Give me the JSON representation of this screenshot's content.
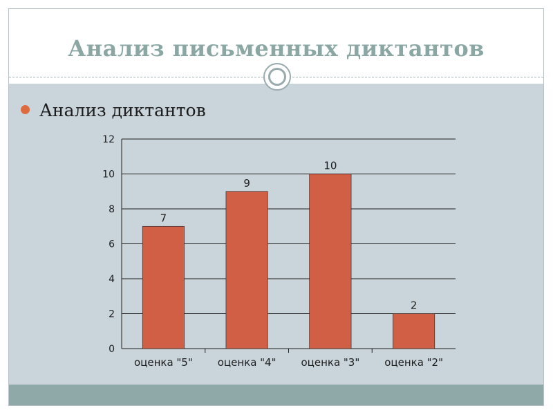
{
  "slide": {
    "title": "Анализ письменных диктантов",
    "bullet": "Анализ диктантов"
  },
  "colors": {
    "title": "#8aa7a4",
    "background": "#c9d4db",
    "bar": "#d05f45",
    "bullet": "#dd6b3e",
    "footer": "#8fa9a8"
  },
  "chart_data": {
    "type": "bar",
    "title": "",
    "xlabel": "",
    "ylabel": "",
    "categories": [
      "оценка \"5\"",
      "оценка \"4\"",
      "оценка \"3\"",
      "оценка \"2\""
    ],
    "series": [
      {
        "values": [
          7,
          9,
          10,
          2
        ]
      }
    ],
    "data_labels": [
      "7",
      "9",
      "10",
      "2"
    ],
    "ylim": [
      0,
      12
    ],
    "yticks": [
      0,
      2,
      4,
      6,
      8,
      10,
      12
    ],
    "grid": true,
    "legend": "none"
  }
}
